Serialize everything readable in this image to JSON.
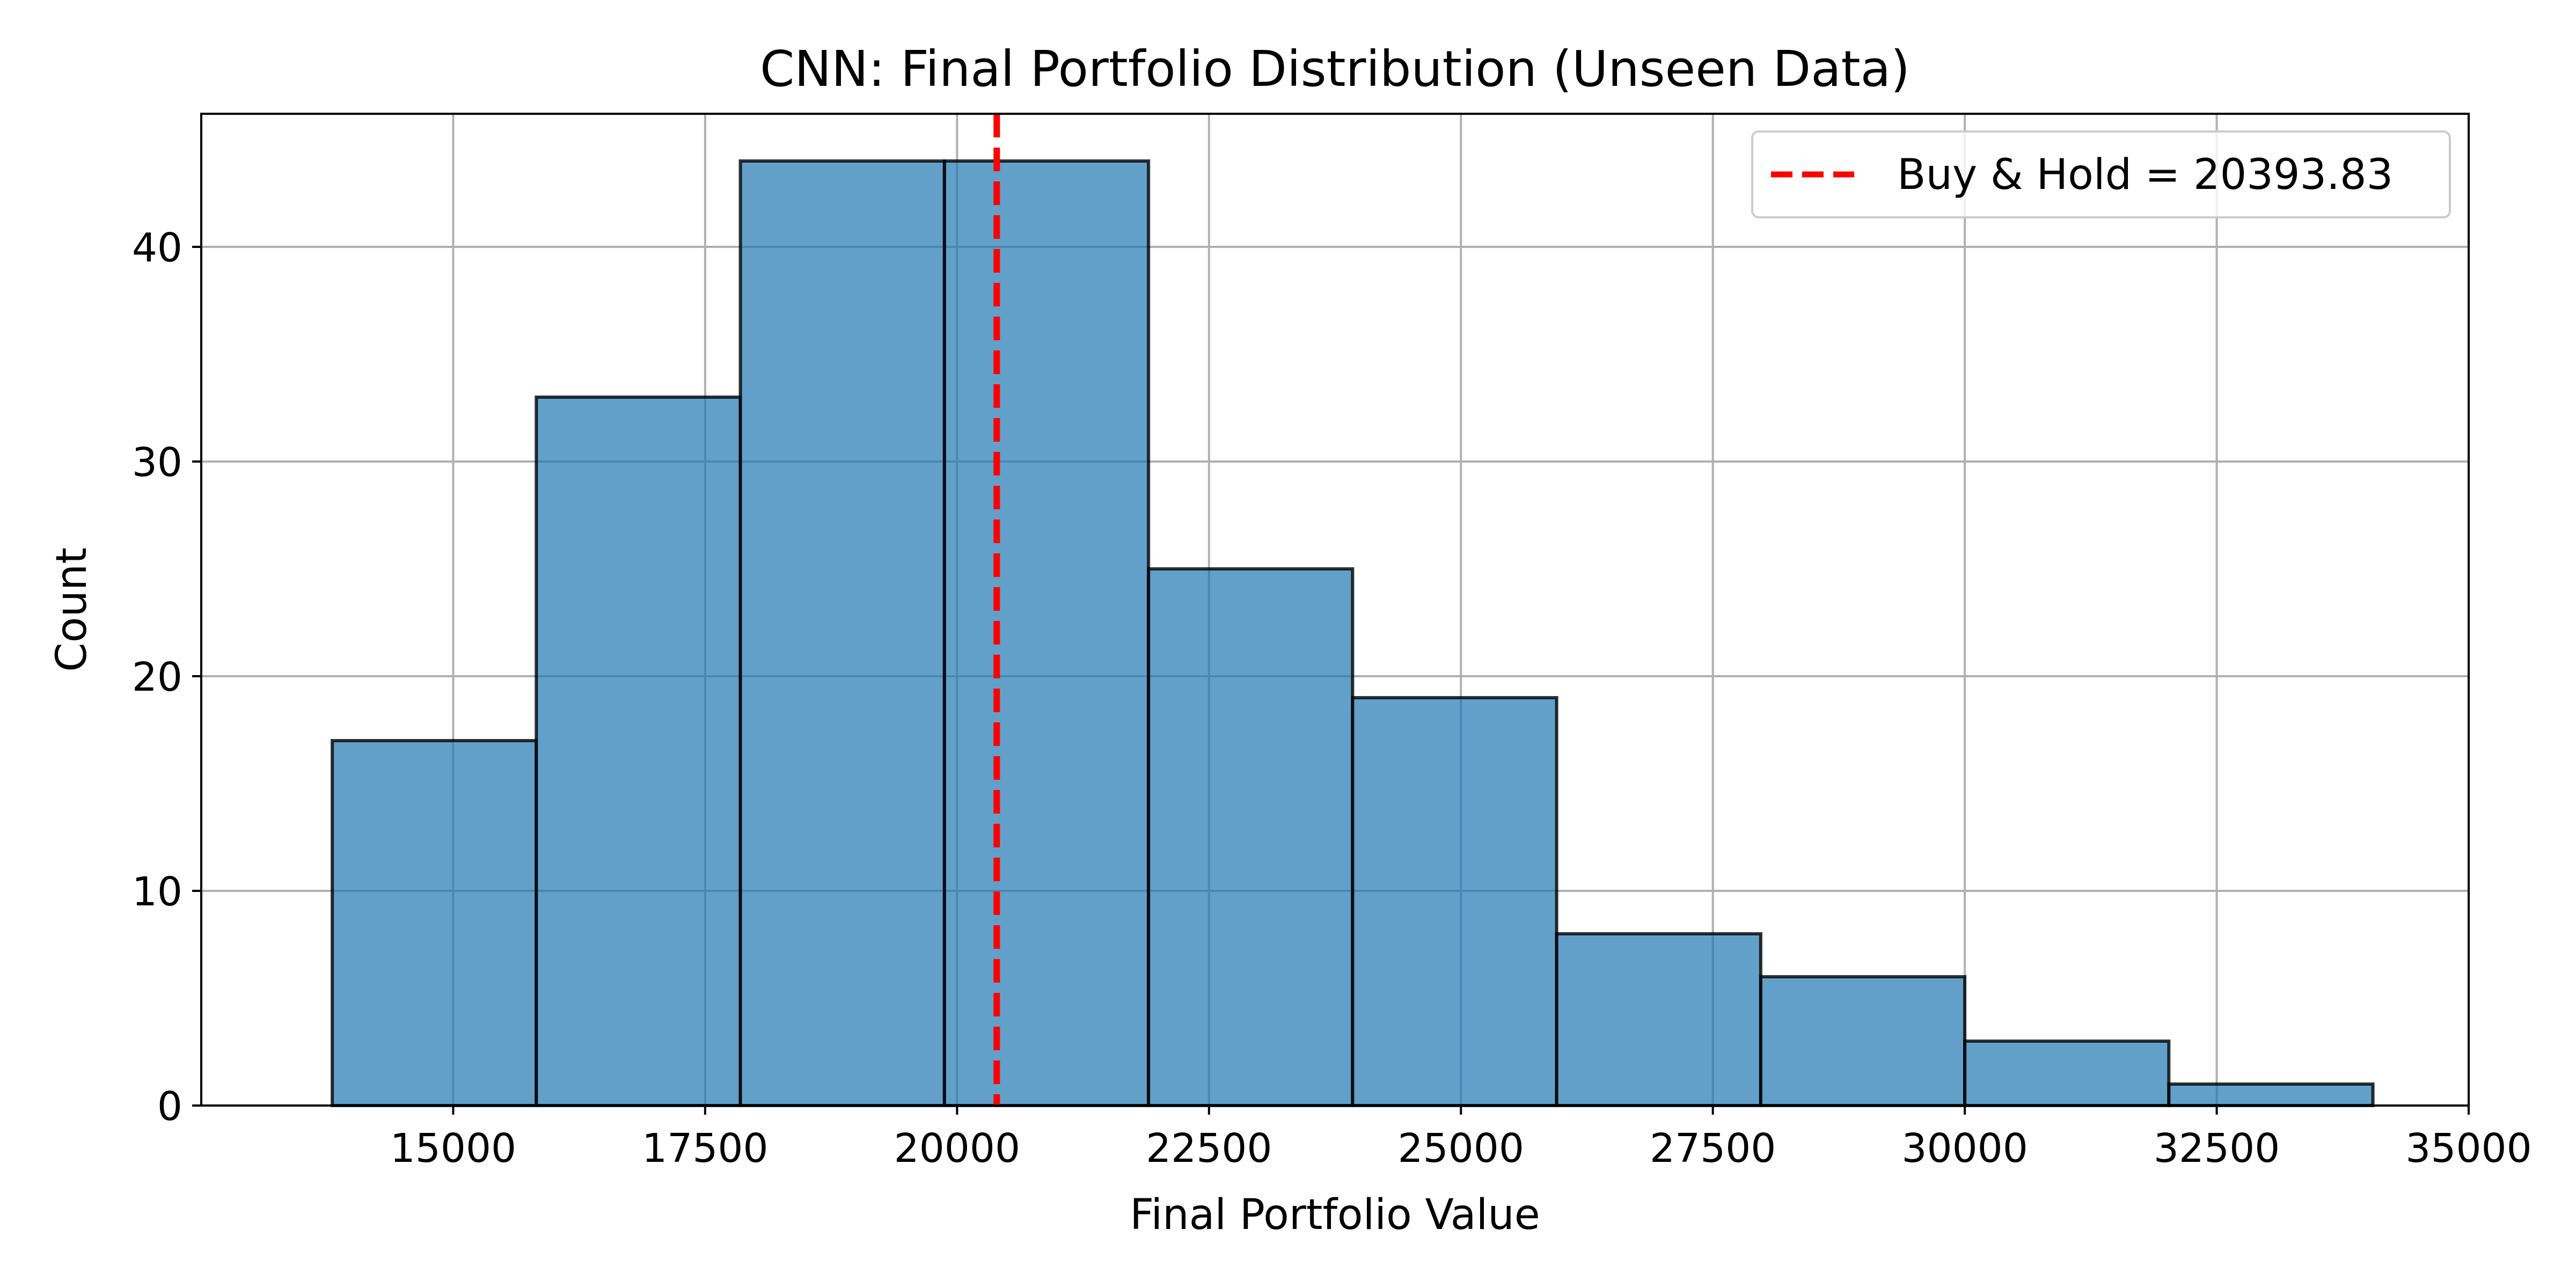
{
  "chart_data": {
    "type": "bar",
    "subtype": "histogram",
    "title": "CNN: Final Portfolio Distribution (Unseen Data)",
    "xlabel": "Final Portfolio Value",
    "ylabel": "Count",
    "xlim": [
      12500,
      35000
    ],
    "ylim": [
      0,
      46.2
    ],
    "xticks": [
      15000,
      17500,
      20000,
      22500,
      25000,
      27500,
      30000,
      32500,
      35000
    ],
    "yticks": [
      0,
      10,
      20,
      30,
      40
    ],
    "bin_edges": [
      13800,
      15825,
      17850,
      19875,
      21900,
      23925,
      25950,
      27975,
      30000,
      32025,
      34050
    ],
    "counts": [
      17,
      33,
      44,
      44,
      25,
      19,
      8,
      6,
      3,
      1
    ],
    "grid": true,
    "legend_position": "upper right",
    "reference_line": {
      "label": "Buy & Hold = 20393.83",
      "x": 20393.83,
      "style": "dashed",
      "color": "#ff0000"
    },
    "colors": {
      "bar_fill": "#1f77b4",
      "bar_alpha": 0.7,
      "bar_edge": "#000000",
      "grid": "#b0b0b0"
    }
  }
}
